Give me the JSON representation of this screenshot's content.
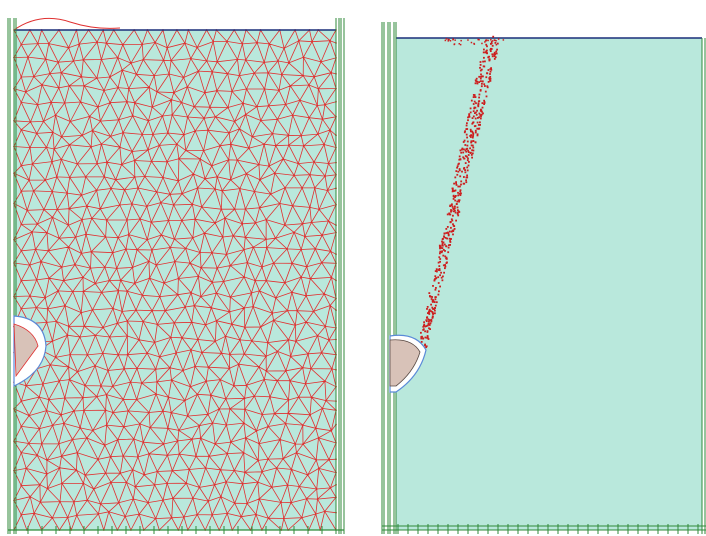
{
  "colors": {
    "background": "#ffffff",
    "soil_fill": "#b9e8dc",
    "mesh_line": "#e03030",
    "boundary_blue": "#1a2f7a",
    "boundary_green": "#2f8a3a",
    "tunnel_fill": "#d8c2b8",
    "tunnel_outline": "#5a8ad8",
    "shear_band": "#cc1f1f"
  },
  "left_panel": {
    "description_icon": "triangular-finite-element-mesh"
  },
  "right_panel": {
    "description_icon": "shear-band-plastic-points"
  }
}
